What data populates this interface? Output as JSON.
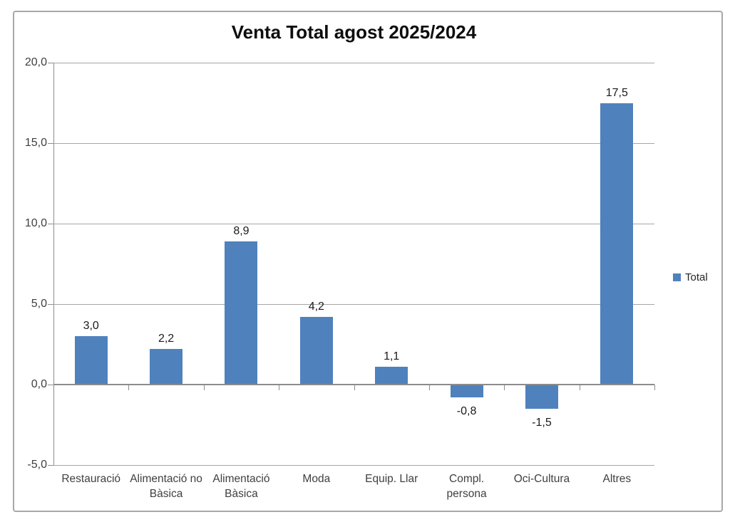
{
  "chart": {
    "title": "Venta Total agost 2025/2024",
    "legend": {
      "label": "Total",
      "swatch_color": "#4f81bd"
    }
  },
  "colors": {
    "bar": "#4f81bd",
    "gridline": "#a6a6a6",
    "axis": "#8c8c8c",
    "frame_border": "#a8a8a8",
    "text": "#3f3f3f",
    "title_text": "#0d0d0d"
  },
  "chart_data": {
    "type": "bar",
    "title": "Venta Total agost 2025/2024",
    "categories": [
      "Restauració",
      "Alimentació no Bàsica",
      "Alimentació Bàsica",
      "Moda",
      "Equip. Llar",
      "Compl. persona",
      "Oci-Cultura",
      "Altres"
    ],
    "series": [
      {
        "name": "Total",
        "values": [
          3.0,
          2.2,
          8.9,
          4.2,
          1.1,
          -0.8,
          -1.5,
          17.5
        ],
        "labels": [
          "3,0",
          "2,2",
          "8,9",
          "4,2",
          "1,1",
          "-0,8",
          "-1,5",
          "17,5"
        ],
        "color": "#4f81bd"
      }
    ],
    "ylim": [
      -5,
      20
    ],
    "ytick_step": 5,
    "ytick_labels": [
      "20,0",
      "15,0",
      "10,0",
      "5,0",
      "0,0",
      "-5,0"
    ],
    "grid": true,
    "legend_position": "right",
    "decimal_separator": ","
  }
}
